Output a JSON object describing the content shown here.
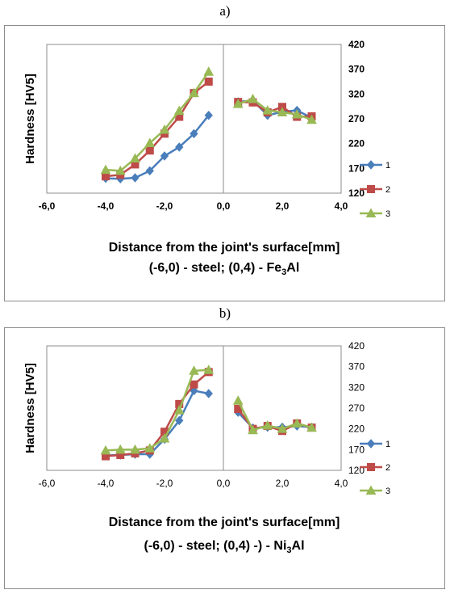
{
  "panels": [
    {
      "letter": "a)",
      "chart_data": {
        "type": "line",
        "ylabel": "Hardness [HV5]",
        "xlabel_line1": "Distance from the joint's surface[mm]",
        "xlabel_line2_pre": "(-6,0) - steel; (0,4) - Fe",
        "xlabel_line2_sub": "3",
        "xlabel_line2_post": "Al",
        "xlim": [
          -6,
          4
        ],
        "ylim": [
          120,
          420
        ],
        "x_ticks": [
          "-6,0",
          "-4,0",
          "-2,0",
          "0,0",
          "2,0",
          "4,0"
        ],
        "x_tick_values": [
          -6,
          -4,
          -2,
          0,
          2,
          4
        ],
        "y_ticks": [
          "420",
          "370",
          "320",
          "270",
          "220",
          "170",
          "120"
        ],
        "y_tick_values": [
          420,
          370,
          320,
          270,
          220,
          170,
          120
        ],
        "colors": [
          "#4a7ebb",
          "#be4b48",
          "#98b954"
        ],
        "series": [
          {
            "name": "1",
            "marker": "diamond",
            "segments": [
              [
                [
                  -4.0,
                  150
                ],
                [
                  -3.5,
                  149
                ],
                [
                  -3.0,
                  151
                ],
                [
                  -2.5,
                  165
                ],
                [
                  -2.0,
                  195
                ],
                [
                  -1.5,
                  213
                ],
                [
                  -1.0,
                  240
                ],
                [
                  -0.5,
                  277
                ]
              ],
              [
                [
                  0.5,
                  304
                ],
                [
                  1.0,
                  307
                ],
                [
                  1.5,
                  277
                ],
                [
                  2.0,
                  284
                ],
                [
                  2.5,
                  287
                ],
                [
                  3.0,
                  272
                ]
              ]
            ]
          },
          {
            "name": "2",
            "marker": "square",
            "segments": [
              [
                [
                  -4.0,
                  154
                ],
                [
                  -3.5,
                  157
                ],
                [
                  -3.0,
                  178
                ],
                [
                  -2.5,
                  206
                ],
                [
                  -2.0,
                  240
                ],
                [
                  -1.5,
                  274
                ],
                [
                  -1.0,
                  322
                ],
                [
                  -0.5,
                  345
                ]
              ],
              [
                [
                  0.5,
                  304
                ],
                [
                  1.0,
                  303
                ],
                [
                  1.5,
                  283
                ],
                [
                  2.0,
                  294
                ],
                [
                  2.5,
                  274
                ],
                [
                  3.0,
                  275
                ]
              ]
            ]
          },
          {
            "name": "3",
            "marker": "triangle",
            "segments": [
              [
                [
                  -4.0,
                  167
                ],
                [
                  -3.5,
                  165
                ],
                [
                  -3.0,
                  190
                ],
                [
                  -2.5,
                  221
                ],
                [
                  -2.0,
                  248
                ],
                [
                  -1.5,
                  286
                ],
                [
                  -1.0,
                  322
                ],
                [
                  -0.5,
                  365
                ]
              ],
              [
                [
                  0.5,
                  300
                ],
                [
                  1.0,
                  310
                ],
                [
                  1.5,
                  287
                ],
                [
                  2.0,
                  283
                ],
                [
                  2.5,
                  279
                ],
                [
                  3.0,
                  268
                ]
              ]
            ]
          }
        ]
      }
    },
    {
      "letter": "b)",
      "chart_data": {
        "type": "line",
        "ylabel": "Hardness [HV5]",
        "xlabel_line1": "Distance from the joint's surface[mm]",
        "xlabel_line2_pre": "(-6,0) - steel; (0,4) -) - Ni",
        "xlabel_line2_sub": "3",
        "xlabel_line2_post": "Al",
        "xlim": [
          -6,
          4
        ],
        "ylim": [
          120,
          420
        ],
        "x_ticks": [
          "-6,0",
          "-4,0",
          "-2,0",
          "0,0",
          "2,0",
          "4,0"
        ],
        "x_tick_values": [
          -6,
          -4,
          -2,
          0,
          2,
          4
        ],
        "y_ticks": [
          "420",
          "370",
          "320",
          "270",
          "220",
          "170",
          "120"
        ],
        "y_tick_values": [
          420,
          370,
          320,
          270,
          220,
          170,
          120
        ],
        "colors": [
          "#4a7ebb",
          "#be4b48",
          "#98b954"
        ],
        "series": [
          {
            "name": "1",
            "marker": "diamond",
            "segments": [
              [
                [
                  -4.0,
                  156
                ],
                [
                  -3.5,
                  157
                ],
                [
                  -3.0,
                  159
                ],
                [
                  -2.5,
                  159
                ],
                [
                  -2.0,
                  195
                ],
                [
                  -1.5,
                  240
                ],
                [
                  -1.0,
                  312
                ],
                [
                  -0.5,
                  305
                ]
              ],
              [
                [
                  0.5,
                  260
                ],
                [
                  1.0,
                  222
                ],
                [
                  1.5,
                  224
                ],
                [
                  2.0,
                  224
                ],
                [
                  2.5,
                  227
                ],
                [
                  3.0,
                  224
                ]
              ]
            ]
          },
          {
            "name": "2",
            "marker": "square",
            "segments": [
              [
                [
                  -4.0,
                  154
                ],
                [
                  -3.5,
                  157
                ],
                [
                  -3.0,
                  161
                ],
                [
                  -2.5,
                  168
                ],
                [
                  -2.0,
                  213
                ],
                [
                  -1.5,
                  280
                ],
                [
                  -1.0,
                  327
                ],
                [
                  -0.5,
                  357
                ]
              ],
              [
                [
                  0.5,
                  268
                ],
                [
                  1.0,
                  220
                ],
                [
                  1.5,
                  227
                ],
                [
                  2.0,
                  215
                ],
                [
                  2.5,
                  233
                ],
                [
                  3.0,
                  223
                ]
              ]
            ]
          },
          {
            "name": "3",
            "marker": "triangle",
            "segments": [
              [
                [
                  -4.0,
                  168
                ],
                [
                  -3.5,
                  170
                ],
                [
                  -3.0,
                  170
                ],
                [
                  -2.5,
                  173
                ],
                [
                  -2.0,
                  197
                ],
                [
                  -1.5,
                  265
                ],
                [
                  -1.0,
                  360
                ],
                [
                  -0.5,
                  362
                ]
              ],
              [
                [
                  0.5,
                  288
                ],
                [
                  1.0,
                  217
                ],
                [
                  1.5,
                  228
                ],
                [
                  2.0,
                  220
                ],
                [
                  2.5,
                  233
                ],
                [
                  3.0,
                  223
                ]
              ]
            ]
          }
        ]
      }
    }
  ]
}
